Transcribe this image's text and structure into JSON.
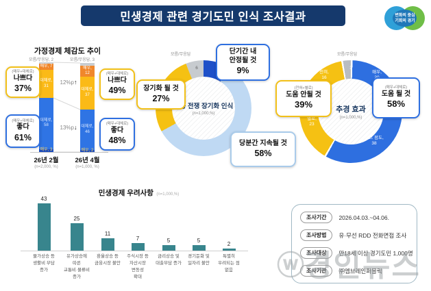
{
  "header": {
    "title": "민생경제 관련 경기도민 인식 조사결과",
    "logo_text": "변화의 중심\n기회의 경기"
  },
  "watermark": {
    "mark": "ⓦ",
    "text": "경인뉴스"
  },
  "colors": {
    "navy": "#15396C",
    "accent_blue": "#2E6FE0",
    "accent_yellow": "#F2C018",
    "light_blue": "#BFD9F3",
    "teal": "#38858D",
    "gray": "#C9CDD1"
  },
  "chart_data": [
    {
      "id": "household-econ-trend",
      "type": "bar",
      "variant": "stacked-column",
      "title": "가정경제 체감도 추이",
      "ylim": [
        0,
        100
      ],
      "dk_color": "#C9CDD1",
      "bars": [
        {
          "category": "26년 2월",
          "note": "(n=2,000, %)",
          "dk_label": "모름/무응답, 2",
          "dk_value": 2,
          "segments": [
            {
              "name": "매우 나쁘다",
              "label": "매우, 7",
              "value": 7,
              "color": "#F0872B",
              "text_color": "#FFFFFF"
            },
            {
              "name": "대체로 나쁘다",
              "label": "대체로,\n31",
              "value": 31,
              "color": "#FBBA17",
              "text_color": "#FFFFFF"
            },
            {
              "name": "대체로 좋다",
              "label": "대체로,\n58",
              "value": 58,
              "color": "#2F74E4",
              "text_color": "#D9E8FF"
            },
            {
              "name": "매우 좋다",
              "label": "매우, 3",
              "value": 3,
              "color": "#1C4CBC",
              "text_color": "#FFD964"
            }
          ],
          "callout_bad": {
            "head": "(매우+대체로)",
            "label": "나쁘다",
            "value": "37%"
          },
          "callout_good": {
            "head": "(매우+대체로)",
            "label": "좋다",
            "value": "61%"
          }
        },
        {
          "category": "26년 4월",
          "note": "(n=1,000, %)",
          "dk_label": "모름/무응답, 3",
          "dk_value": 3,
          "segments": [
            {
              "name": "매우 나쁘다",
              "label": "매우, 12",
              "value": 12,
              "color": "#F0872B",
              "text_color": "#FFFFFF"
            },
            {
              "name": "대체로 나쁘다",
              "label": "대체로,\n37",
              "value": 37,
              "color": "#FBBA17",
              "text_color": "#FFFFFF"
            },
            {
              "name": "대체로 좋다",
              "label": "대체로,\n46",
              "value": 46,
              "color": "#2F74E4",
              "text_color": "#D9E8FF"
            },
            {
              "name": "매우 좋다",
              "label": "매우, 2",
              "value": 2,
              "color": "#1C4CBC",
              "text_color": "#FFD964"
            }
          ],
          "callout_bad": {
            "head": "(매우+대체로)",
            "label": "나쁘다",
            "value": "49%"
          },
          "callout_good": {
            "head": "(매우+대체로)",
            "label": "좋다",
            "value": "48%"
          }
        }
      ],
      "changes": [
        {
          "text": "12%p",
          "arrow": "↑"
        },
        {
          "text": "13%p",
          "arrow": "↓"
        }
      ]
    },
    {
      "id": "mideast-war-outlook",
      "type": "pie",
      "variant": "donut",
      "title": "중동 전쟁 장기화 인식",
      "subtitle": "(n=1,000,%)",
      "dk_caption": "모름/무응답",
      "slices": [
        {
          "name": "단기간 내 안정될 것",
          "value": 9,
          "color": "#1E50C8",
          "label": ""
        },
        {
          "name": "당분간 지속될 것",
          "value": 58,
          "color": "#BFD9F3",
          "label": ""
        },
        {
          "name": "장기화 될 것",
          "value": 27,
          "color": "#F5C113",
          "label": ""
        },
        {
          "name": "모름/무응답",
          "value": 6,
          "color": "#C7CBCF",
          "label": "6"
        }
      ],
      "callouts": [
        {
          "label": "단기간 내\n안정될 것",
          "value": "9%"
        },
        {
          "label": "장기화 될 것",
          "value": "27%"
        },
        {
          "label": "당분간 지속될 것",
          "value": "58%"
        }
      ]
    },
    {
      "id": "supplementary-budget-effect",
      "type": "pie",
      "variant": "donut",
      "title": "추경 효과",
      "subtitle": "(n=1,000,%)",
      "dk_caption": "모름/무응답",
      "slices": [
        {
          "name": "매우",
          "value": 20,
          "color": "#2E6FE0",
          "label": "매우,\n20"
        },
        {
          "name": "어느 정도",
          "value": 38,
          "color": "#2E6FE0",
          "label": "어느 정도,\n38"
        },
        {
          "name": "별로",
          "value": 23,
          "color": "#F5C113",
          "label": "별로,\n23"
        },
        {
          "name": "전혀",
          "value": 16,
          "color": "#F5C113",
          "label": "전혀,\n16"
        },
        {
          "name": "모름/무응답",
          "value": 3,
          "color": "#B9BDC1",
          "label": "3"
        }
      ],
      "callouts": [
        {
          "head": "(전혀+별로)",
          "label": "도움 안될 것",
          "value": "39%"
        },
        {
          "head": "(매우+대체로)",
          "label": "도움 될 것",
          "value": "58%"
        }
      ]
    },
    {
      "id": "livelihood-concerns",
      "type": "bar",
      "title": "민생경제 우려사항",
      "subtitle": "(n=1,000,%)",
      "color": "#38858D",
      "categories": [
        "물가상승 등\n생활비 부담\n증가",
        "유가상승에\n따른\n교통비·물류비\n증가",
        "환율상승 등\n금융시장 불안",
        "주식시장 등\n자산시장\n변동성\n확대",
        "금리상승 및\n대출부담 증가",
        "경기둔화 및\n일자리 불안",
        "특별히\n우려되는 점\n없음"
      ],
      "values": [
        43,
        25,
        11,
        7,
        5,
        5,
        2
      ]
    }
  ],
  "survey_info": {
    "rows": [
      {
        "label": "조사기간",
        "value": "2026.04.03.~04.06."
      },
      {
        "label": "조사방법",
        "value": "유·무선 RDD 전화면접 조사"
      },
      {
        "label": "조사대상",
        "value": "만18세 이상 경기도민 1,000명"
      },
      {
        "label": "조사기관",
        "value": "㈜엠브레인퍼블릭"
      }
    ]
  }
}
